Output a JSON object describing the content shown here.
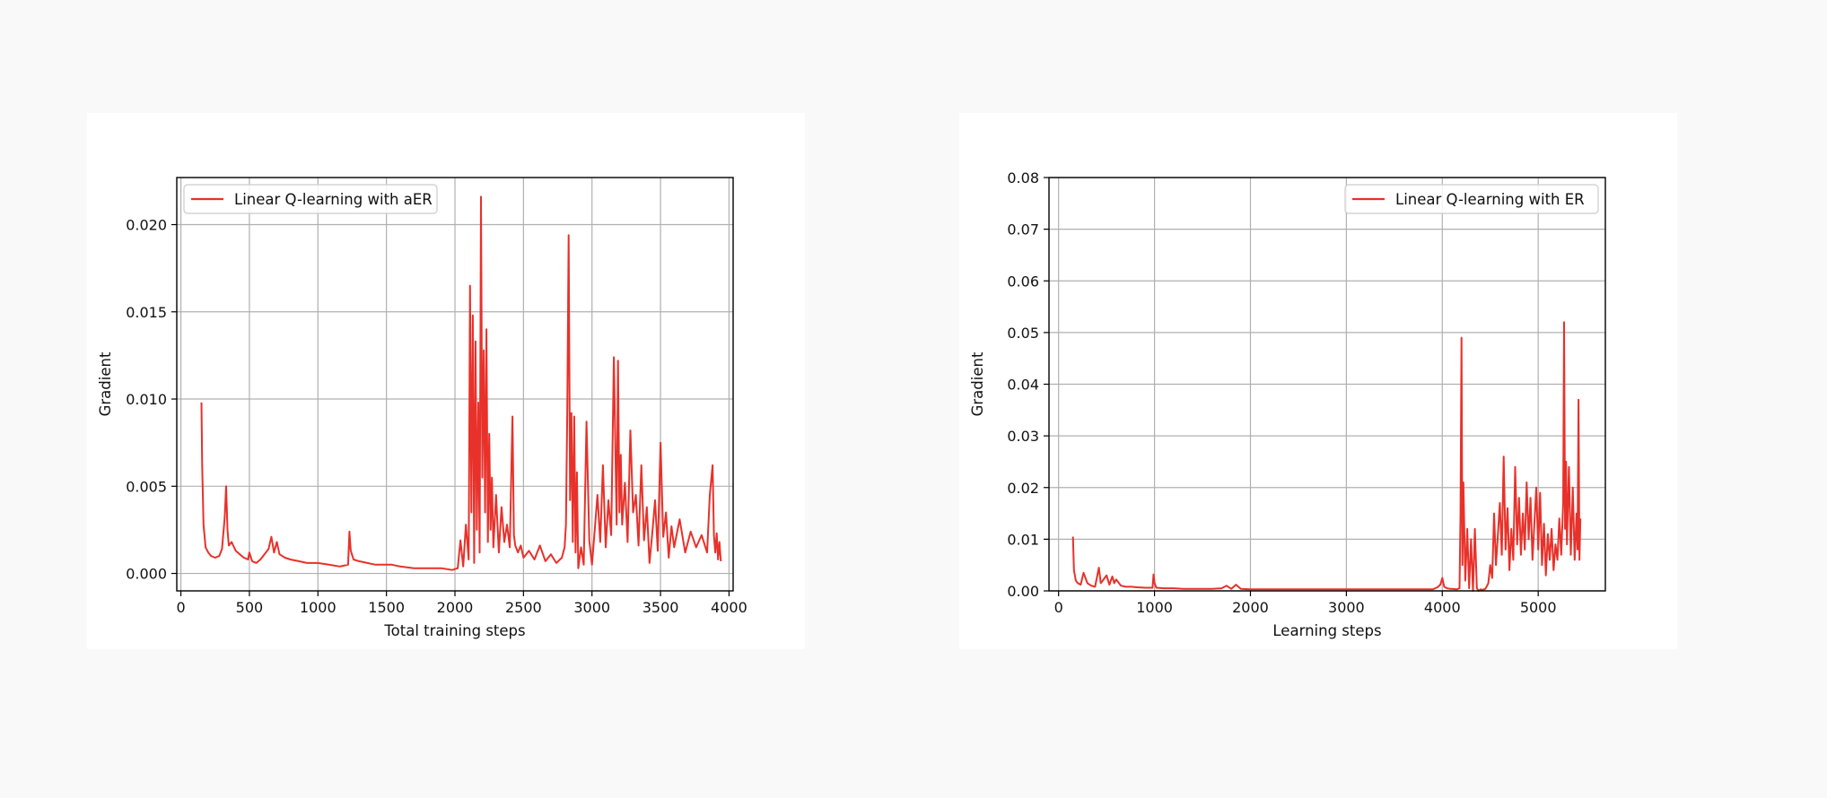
{
  "chart_data": [
    {
      "type": "line",
      "title": "",
      "xlabel": "Total training steps",
      "ylabel": "Gradient",
      "xlim": [
        -30,
        4030
      ],
      "ylim": [
        -0.001,
        0.0227
      ],
      "xticks": [
        0,
        500,
        1000,
        1500,
        2000,
        2500,
        3000,
        3500,
        4000
      ],
      "xtick_labels": [
        "0",
        "500",
        "1000",
        "1500",
        "2000",
        "2500",
        "3000",
        "3500",
        "4000"
      ],
      "yticks": [
        0.0,
        0.005,
        0.01,
        0.015,
        0.02
      ],
      "ytick_labels": [
        "0.000",
        "0.005",
        "0.010",
        "0.015",
        "0.020"
      ],
      "grid": true,
      "legend_position": "top-left",
      "series": [
        {
          "name": "Linear Q-learning with aER",
          "color": "#e8312a",
          "x": [
            150,
            155,
            165,
            180,
            200,
            220,
            250,
            280,
            300,
            320,
            330,
            340,
            350,
            370,
            400,
            430,
            460,
            490,
            500,
            520,
            550,
            580,
            610,
            640,
            660,
            680,
            700,
            720,
            760,
            800,
            860,
            920,
            1000,
            1080,
            1160,
            1220,
            1230,
            1240,
            1260,
            1300,
            1360,
            1420,
            1480,
            1540,
            1600,
            1700,
            1800,
            1900,
            1980,
            2020,
            2040,
            2060,
            2080,
            2100,
            2110,
            2120,
            2130,
            2140,
            2150,
            2160,
            2170,
            2180,
            2190,
            2200,
            2210,
            2220,
            2230,
            2240,
            2250,
            2260,
            2270,
            2280,
            2300,
            2320,
            2340,
            2360,
            2380,
            2400,
            2420,
            2430,
            2440,
            2460,
            2480,
            2500,
            2540,
            2580,
            2620,
            2660,
            2700,
            2740,
            2780,
            2800,
            2810,
            2820,
            2830,
            2840,
            2850,
            2860,
            2870,
            2880,
            2890,
            2900,
            2920,
            2940,
            2960,
            2980,
            3000,
            3020,
            3040,
            3060,
            3080,
            3100,
            3120,
            3140,
            3160,
            3180,
            3190,
            3200,
            3210,
            3220,
            3240,
            3260,
            3280,
            3300,
            3320,
            3340,
            3360,
            3380,
            3400,
            3420,
            3440,
            3460,
            3480,
            3500,
            3520,
            3540,
            3560,
            3580,
            3600,
            3640,
            3680,
            3720,
            3760,
            3800,
            3840,
            3860,
            3880,
            3890,
            3900,
            3910,
            3920,
            3930,
            3940
          ],
          "y": [
            0.0098,
            0.0062,
            0.0028,
            0.0015,
            0.0012,
            0.001,
            0.0009,
            0.001,
            0.0014,
            0.0032,
            0.005,
            0.0025,
            0.0016,
            0.0018,
            0.0013,
            0.0011,
            0.0009,
            0.0008,
            0.0012,
            0.0007,
            0.0006,
            0.0008,
            0.0011,
            0.0014,
            0.0021,
            0.0012,
            0.0018,
            0.0011,
            0.0009,
            0.0008,
            0.0007,
            0.0006,
            0.0006,
            0.0005,
            0.0004,
            0.0005,
            0.0024,
            0.0013,
            0.0008,
            0.0007,
            0.0006,
            0.0005,
            0.0005,
            0.0005,
            0.0004,
            0.0003,
            0.0003,
            0.0003,
            0.0002,
            0.0003,
            0.0019,
            0.0004,
            0.0028,
            0.0008,
            0.0165,
            0.0035,
            0.0148,
            0.0006,
            0.0133,
            0.0025,
            0.0098,
            0.0012,
            0.0216,
            0.0055,
            0.0128,
            0.0035,
            0.014,
            0.0018,
            0.008,
            0.0025,
            0.0055,
            0.0015,
            0.0045,
            0.0012,
            0.0038,
            0.0018,
            0.0028,
            0.0015,
            0.009,
            0.0022,
            0.0016,
            0.0012,
            0.0016,
            0.0009,
            0.0013,
            0.0008,
            0.0016,
            0.0007,
            0.0011,
            0.0006,
            0.0009,
            0.0015,
            0.0028,
            0.0095,
            0.0194,
            0.0042,
            0.0092,
            0.0018,
            0.009,
            0.0012,
            0.0058,
            0.0003,
            0.0015,
            0.0005,
            0.0087,
            0.0019,
            0.0005,
            0.0025,
            0.0045,
            0.0018,
            0.0062,
            0.0015,
            0.0042,
            0.0022,
            0.0124,
            0.0028,
            0.0122,
            0.0035,
            0.0068,
            0.0028,
            0.0052,
            0.0018,
            0.0082,
            0.0035,
            0.0045,
            0.0016,
            0.0062,
            0.0019,
            0.0038,
            0.0006,
            0.0023,
            0.0042,
            0.0013,
            0.0075,
            0.0021,
            0.0035,
            0.0009,
            0.0027,
            0.0015,
            0.0031,
            0.0012,
            0.0024,
            0.0015,
            0.0022,
            0.0012,
            0.0045,
            0.0062,
            0.0022,
            0.0012,
            0.0023,
            0.0008,
            0.0018,
            0.0007
          ]
        }
      ]
    },
    {
      "type": "line",
      "title": "",
      "xlabel": "Learning steps",
      "ylabel": "Gradient",
      "xlim": [
        -100,
        5700
      ],
      "ylim": [
        0,
        0.08
      ],
      "xticks": [
        0,
        1000,
        2000,
        3000,
        4000,
        5000
      ],
      "xtick_labels": [
        "0",
        "1000",
        "2000",
        "3000",
        "4000",
        "5000"
      ],
      "yticks": [
        0.0,
        0.01,
        0.02,
        0.03,
        0.04,
        0.05,
        0.06,
        0.07,
        0.08
      ],
      "ytick_labels": [
        "0.00",
        "0.01",
        "0.02",
        "0.03",
        "0.04",
        "0.05",
        "0.06",
        "0.07",
        "0.08"
      ],
      "grid": true,
      "legend_position": "top-right",
      "series": [
        {
          "name": "Linear Q-learning with ER",
          "color": "#e8312a",
          "x": [
            150,
            160,
            180,
            200,
            230,
            260,
            300,
            340,
            380,
            420,
            440,
            460,
            500,
            530,
            560,
            580,
            600,
            650,
            700,
            760,
            820,
            900,
            980,
            990,
            1000,
            1020,
            1100,
            1200,
            1300,
            1400,
            1500,
            1600,
            1700,
            1750,
            1800,
            1850,
            1900,
            2000,
            2200,
            2400,
            2600,
            2800,
            3000,
            3200,
            3400,
            3600,
            3800,
            3900,
            3950,
            3980,
            4000,
            4020,
            4050,
            4080,
            4100,
            4150,
            4180,
            4190,
            4200,
            4210,
            4220,
            4240,
            4260,
            4280,
            4300,
            4320,
            4340,
            4360,
            4380,
            4400,
            4420,
            4450,
            4480,
            4500,
            4520,
            4540,
            4560,
            4580,
            4600,
            4620,
            4640,
            4660,
            4680,
            4700,
            4720,
            4740,
            4760,
            4780,
            4800,
            4820,
            4840,
            4860,
            4880,
            4900,
            4920,
            4940,
            4960,
            4980,
            5000,
            5020,
            5040,
            5060,
            5080,
            5100,
            5120,
            5140,
            5160,
            5180,
            5200,
            5220,
            5240,
            5260,
            5270,
            5280,
            5290,
            5300,
            5320,
            5340,
            5360,
            5380,
            5400,
            5410,
            5420,
            5430,
            5440
          ],
          "y": [
            0.0105,
            0.004,
            0.002,
            0.0015,
            0.0012,
            0.0035,
            0.0015,
            0.001,
            0.0008,
            0.0045,
            0.0015,
            0.002,
            0.003,
            0.0012,
            0.0028,
            0.0015,
            0.0022,
            0.001,
            0.0008,
            0.0008,
            0.0007,
            0.0006,
            0.0006,
            0.0032,
            0.0015,
            0.0006,
            0.0005,
            0.0005,
            0.0004,
            0.0004,
            0.0004,
            0.0004,
            0.0005,
            0.001,
            0.0004,
            0.0012,
            0.0004,
            0.0003,
            0.0003,
            0.0003,
            0.0003,
            0.0003,
            0.0003,
            0.0003,
            0.0003,
            0.0003,
            0.0003,
            0.0003,
            0.0007,
            0.0012,
            0.0025,
            0.0008,
            0.0005,
            0.0004,
            0.0004,
            0.0003,
            0.0005,
            0.015,
            0.049,
            0.005,
            0.021,
            0.002,
            0.012,
            0.0005,
            0.01,
            0.0,
            0.012,
            0.0005,
            0.0,
            0.0003,
            0.0002,
            0.0004,
            0.0015,
            0.005,
            0.0025,
            0.015,
            0.005,
            0.011,
            0.017,
            0.007,
            0.026,
            0.008,
            0.016,
            0.004,
            0.012,
            0.006,
            0.024,
            0.009,
            0.018,
            0.007,
            0.015,
            0.008,
            0.021,
            0.01,
            0.018,
            0.006,
            0.013,
            0.02,
            0.008,
            0.019,
            0.005,
            0.013,
            0.003,
            0.011,
            0.006,
            0.012,
            0.004,
            0.009,
            0.006,
            0.014,
            0.007,
            0.017,
            0.052,
            0.012,
            0.025,
            0.009,
            0.024,
            0.007,
            0.02,
            0.006,
            0.015,
            0.008,
            0.037,
            0.006,
            0.014
          ]
        }
      ]
    }
  ]
}
